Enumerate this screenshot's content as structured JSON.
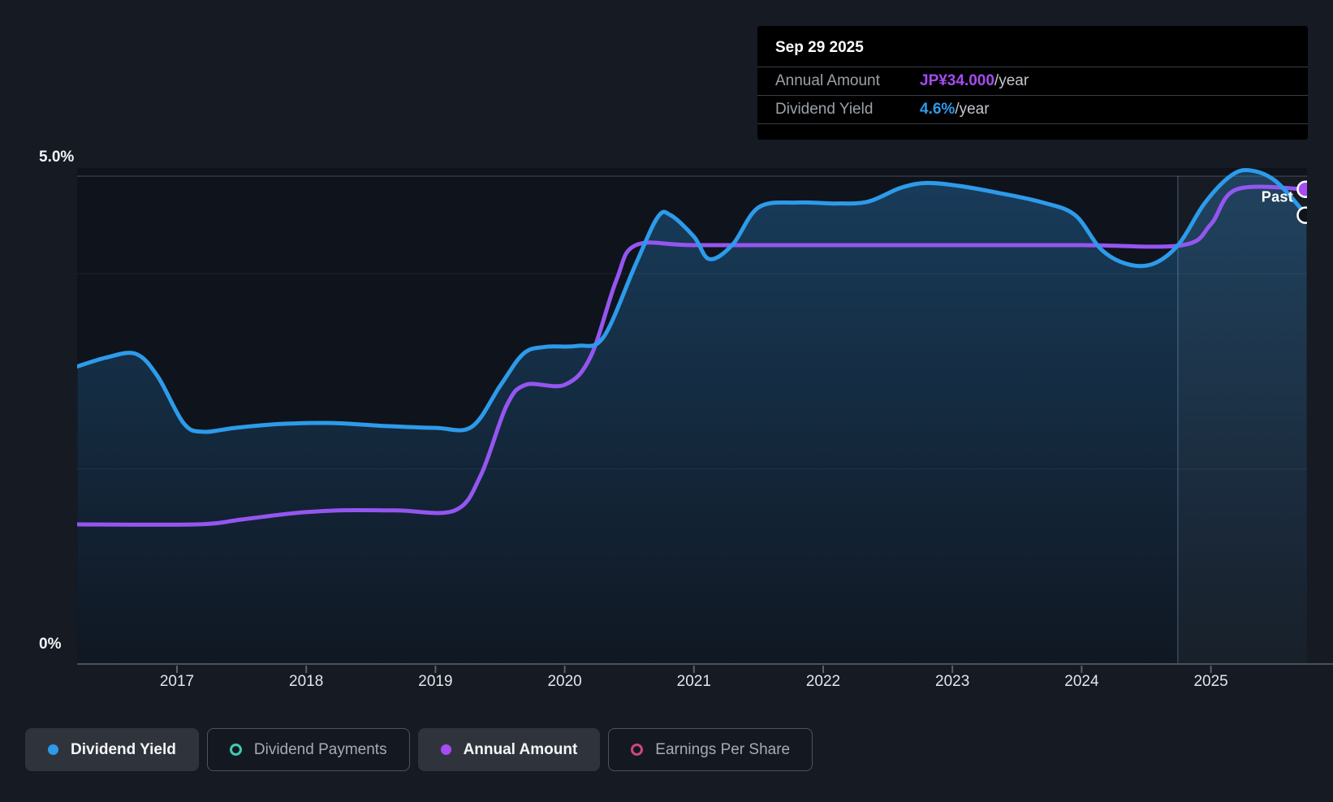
{
  "tooltip": {
    "date": "Sep 29 2025",
    "rows": [
      {
        "label": "Annual Amount",
        "value": "JP¥34.000",
        "suffix": "/year",
        "value_color": "#A64CF2"
      },
      {
        "label": "Dividend Yield",
        "value": "4.6%",
        "suffix": "/year",
        "value_color": "#2D9BEA"
      }
    ]
  },
  "y_axis": {
    "top_label": "5.0%",
    "bottom_label": "0%"
  },
  "legend": [
    {
      "label": "Dividend Yield",
      "color": "#2D9BEA",
      "marker": "filled",
      "active": true
    },
    {
      "label": "Dividend Payments",
      "color": "#41C9B4",
      "marker": "outline",
      "active": false
    },
    {
      "label": "Annual Amount",
      "color": "#A64CF2",
      "marker": "filled",
      "active": true
    },
    {
      "label": "Earnings Per Share",
      "color": "#CF4583",
      "marker": "outline",
      "active": false
    }
  ],
  "chart_data": {
    "type": "area",
    "x_axis": {
      "ticks": [
        2017,
        2018,
        2019,
        2020,
        2021,
        2022,
        2023,
        2024,
        2025
      ],
      "range": [
        2016.23,
        2025.74
      ]
    },
    "y_axis_yield": {
      "unit": "%",
      "range": [
        0,
        5.0
      ],
      "gridlines_pct": [
        5,
        4,
        2,
        0
      ],
      "labeled": [
        "5.0%",
        "0%"
      ]
    },
    "past_window": {
      "start_year": 2024.744,
      "label": "Past"
    },
    "current": {
      "date": "Sep 29 2025",
      "dividend_yield_pct": 4.6,
      "annual_amount_jpy": 34.0
    },
    "series": [
      {
        "name": "Dividend Yield",
        "unit": "%",
        "color": "#2D9BEA",
        "style": "line+area",
        "points": [
          [
            2016.23,
            3.05
          ],
          [
            2016.45,
            3.14
          ],
          [
            2016.68,
            3.18
          ],
          [
            2016.85,
            2.95
          ],
          [
            2017.05,
            2.47
          ],
          [
            2017.2,
            2.38
          ],
          [
            2017.45,
            2.42
          ],
          [
            2017.8,
            2.46
          ],
          [
            2018.2,
            2.47
          ],
          [
            2018.6,
            2.44
          ],
          [
            2019.0,
            2.42
          ],
          [
            2019.28,
            2.43
          ],
          [
            2019.5,
            2.85
          ],
          [
            2019.68,
            3.18
          ],
          [
            2019.85,
            3.25
          ],
          [
            2020.1,
            3.26
          ],
          [
            2020.3,
            3.35
          ],
          [
            2020.55,
            4.1
          ],
          [
            2020.72,
            4.58
          ],
          [
            2020.82,
            4.6
          ],
          [
            2021.0,
            4.38
          ],
          [
            2021.12,
            4.15
          ],
          [
            2021.3,
            4.3
          ],
          [
            2021.5,
            4.68
          ],
          [
            2021.8,
            4.73
          ],
          [
            2022.1,
            4.72
          ],
          [
            2022.35,
            4.74
          ],
          [
            2022.6,
            4.88
          ],
          [
            2022.8,
            4.93
          ],
          [
            2023.05,
            4.9
          ],
          [
            2023.35,
            4.83
          ],
          [
            2023.7,
            4.73
          ],
          [
            2023.95,
            4.6
          ],
          [
            2024.15,
            4.25
          ],
          [
            2024.35,
            4.1
          ],
          [
            2024.55,
            4.1
          ],
          [
            2024.75,
            4.3
          ],
          [
            2024.95,
            4.72
          ],
          [
            2025.15,
            5.0
          ],
          [
            2025.3,
            5.06
          ],
          [
            2025.5,
            4.95
          ],
          [
            2025.74,
            4.6
          ]
        ]
      },
      {
        "name": "Annual Amount",
        "unit": "JP¥/year",
        "color": "#9456F0",
        "style": "line",
        "points": [
          [
            2016.23,
            10
          ],
          [
            2017.15,
            10
          ],
          [
            2017.5,
            10.35
          ],
          [
            2017.9,
            10.8
          ],
          [
            2018.25,
            11
          ],
          [
            2018.7,
            11
          ],
          [
            2019.15,
            11
          ],
          [
            2019.35,
            13.5
          ],
          [
            2019.55,
            18.5
          ],
          [
            2019.7,
            20
          ],
          [
            2020.0,
            20
          ],
          [
            2020.2,
            22
          ],
          [
            2020.4,
            27.5
          ],
          [
            2020.55,
            30
          ],
          [
            2021.0,
            30
          ],
          [
            2022.0,
            30
          ],
          [
            2023.0,
            30
          ],
          [
            2024.0,
            30
          ],
          [
            2024.78,
            30
          ],
          [
            2025.0,
            31.5
          ],
          [
            2025.2,
            34
          ],
          [
            2025.74,
            34
          ]
        ]
      }
    ]
  }
}
